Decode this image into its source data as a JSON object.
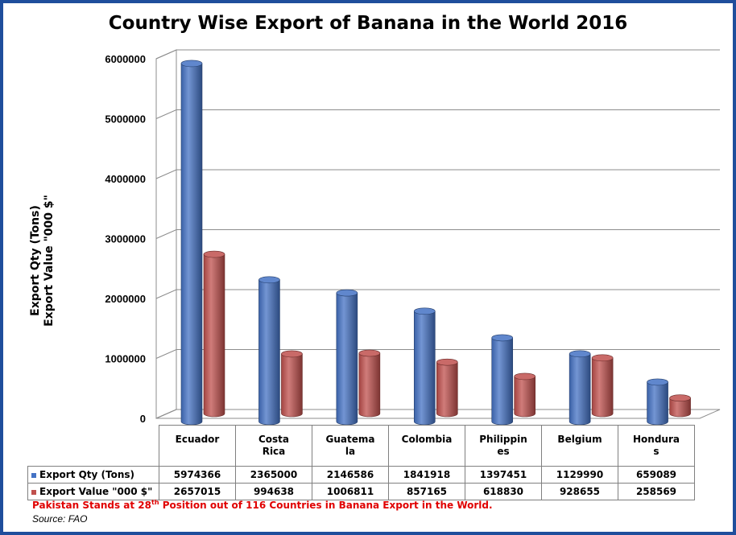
{
  "chart_data": {
    "type": "bar",
    "title": "Country Wise Export of Banana in the World 2016",
    "ylabel_line1": "Export Qty (Tons)",
    "ylabel_line2": "Export Value \"000 $\"",
    "ylim": [
      0,
      6000000
    ],
    "yticks": [
      "6000000",
      "5000000",
      "4000000",
      "3000000",
      "2000000",
      "1000000",
      "0"
    ],
    "grid": true,
    "categories": [
      "Ecuador",
      "Costa Rica",
      "Guatemala",
      "Colombia",
      "Philippines",
      "Belgium",
      "Honduras"
    ],
    "category_lines": [
      [
        "Ecuador"
      ],
      [
        "Costa",
        "Rica"
      ],
      [
        "Guatema",
        "la"
      ],
      [
        "Colombia"
      ],
      [
        "Philippin",
        "es"
      ],
      [
        "Belgium"
      ],
      [
        "Hondura",
        "s"
      ]
    ],
    "series": [
      {
        "name": "Export Qty (Tons)",
        "color": "#4472c4",
        "values": [
          5974366,
          2365000,
          2146586,
          1841918,
          1397451,
          1129990,
          659089
        ]
      },
      {
        "name": "Export Value \"000 $\"",
        "color": "#c0504d",
        "values": [
          2657015,
          994638,
          1006811,
          857165,
          618830,
          928655,
          258569
        ]
      }
    ]
  },
  "note": {
    "before": "Pakistan Stands at 28",
    "sup": "th",
    "after": "  Position out of 116 Countries in Banana Export in the World."
  },
  "source": "Source: FAO"
}
